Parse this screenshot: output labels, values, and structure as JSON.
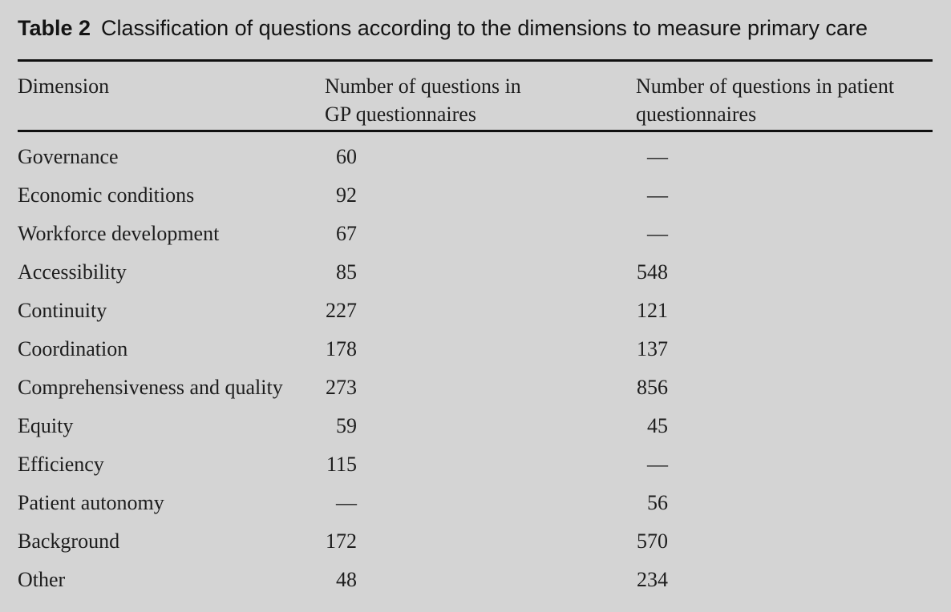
{
  "title": {
    "label": "Table 2",
    "caption": "Classification of questions according to the dimensions to measure primary care"
  },
  "columns": {
    "dimension": "Dimension",
    "gp_line1": "Number of questions in",
    "gp_line2": "GP questionnaires",
    "patient_line1": "Number of questions in patient",
    "patient_line2": "questionnaires"
  },
  "table": {
    "missing_value_mark": "—",
    "rows": [
      {
        "dimension": "Governance",
        "gp": "60",
        "patient": "—"
      },
      {
        "dimension": "Economic conditions",
        "gp": "92",
        "patient": "—"
      },
      {
        "dimension": "Workforce development",
        "gp": "67",
        "patient": "—"
      },
      {
        "dimension": "Accessibility",
        "gp": "85",
        "patient": "548"
      },
      {
        "dimension": "Continuity",
        "gp": "227",
        "patient": "121"
      },
      {
        "dimension": "Coordination",
        "gp": "178",
        "patient": "137"
      },
      {
        "dimension": "Comprehensiveness and quality",
        "gp": "273",
        "patient": "856"
      },
      {
        "dimension": "Equity",
        "gp": "59",
        "patient": "45"
      },
      {
        "dimension": "Efficiency",
        "gp": "115",
        "patient": "—"
      },
      {
        "dimension": "Patient autonomy",
        "gp": "—",
        "patient": "56"
      },
      {
        "dimension": "Background",
        "gp": "172",
        "patient": "570"
      },
      {
        "dimension": "Other",
        "gp": "48",
        "patient": "234"
      }
    ]
  },
  "colors": {
    "background": "#d4d4d4",
    "text": "#1d1d1d",
    "rule": "#101010"
  }
}
